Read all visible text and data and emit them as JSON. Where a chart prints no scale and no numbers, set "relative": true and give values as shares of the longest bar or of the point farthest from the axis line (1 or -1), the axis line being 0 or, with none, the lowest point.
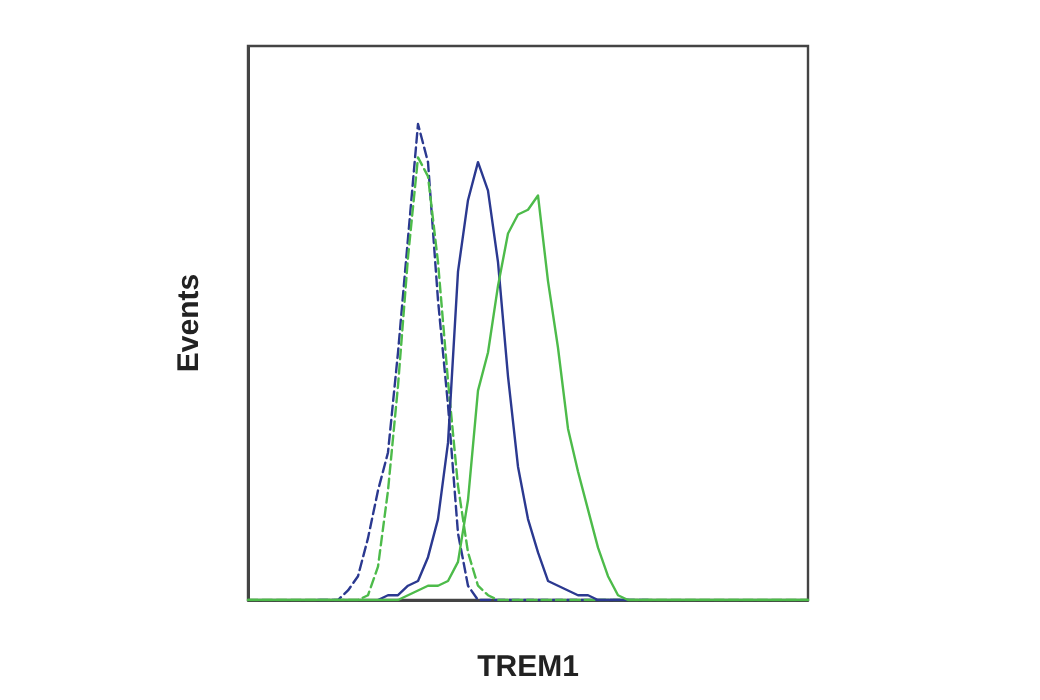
{
  "chart_data": {
    "type": "line",
    "relative": true,
    "xlabel": "TREM1",
    "ylabel": "Events",
    "grid": false,
    "marker": "none",
    "categories": [
      null,
      null,
      null,
      null,
      null,
      null,
      null,
      null,
      null,
      null,
      null,
      null,
      null,
      null,
      null,
      null,
      null,
      null,
      null,
      null,
      null,
      null,
      null,
      null,
      null,
      null,
      null,
      null,
      null,
      null,
      null,
      null,
      null,
      null,
      null,
      null,
      null,
      null,
      null,
      null,
      null,
      null,
      null,
      null,
      null,
      null,
      null,
      null,
      null,
      null,
      null,
      null,
      null,
      null,
      null,
      null,
      null
    ],
    "series": [
      {
        "color": "#2b3990",
        "line_style": "dashed",
        "values": [
          null,
          null,
          null,
          null,
          null,
          null,
          null,
          0,
          0,
          0,
          0.02,
          0.05,
          0.13,
          0.23,
          0.31,
          0.52,
          0.76,
          1,
          0.92,
          0.63,
          0.41,
          0.14,
          0.03,
          0,
          0,
          0,
          0,
          0,
          0,
          0,
          0,
          0,
          0,
          0,
          0,
          0,
          0,
          0,
          0,
          0,
          0,
          null,
          null,
          null,
          null,
          null,
          null,
          null,
          null,
          null,
          null,
          null,
          null,
          null,
          null,
          null,
          null
        ]
      },
      {
        "color": "#4dbb4a",
        "line_style": "dashed",
        "values": [
          0,
          0,
          0,
          0,
          0,
          0,
          0,
          0,
          0,
          0,
          0,
          0,
          0.01,
          0.07,
          0.23,
          0.45,
          0.72,
          0.93,
          0.89,
          0.71,
          0.46,
          0.24,
          0.1,
          0.03,
          0.01,
          0,
          0,
          0,
          0,
          0,
          0,
          0,
          0,
          0,
          0,
          0,
          0,
          0,
          0,
          0,
          0,
          0,
          0,
          0,
          0,
          0,
          0,
          0,
          0,
          0,
          0,
          0,
          0,
          0,
          0,
          0,
          0
        ]
      },
      {
        "color": "#2b3990",
        "line_style": "solid",
        "values": [
          null,
          null,
          null,
          null,
          null,
          null,
          null,
          null,
          null,
          null,
          null,
          null,
          null,
          0,
          0.01,
          0.01,
          0.03,
          0.04,
          0.09,
          0.17,
          0.33,
          0.69,
          0.84,
          0.92,
          0.86,
          0.71,
          0.47,
          0.28,
          0.17,
          0.1,
          0.04,
          0.03,
          0.02,
          0.01,
          0.01,
          0,
          0,
          0,
          0,
          null,
          null,
          null,
          null,
          null,
          null,
          null,
          null,
          null,
          null,
          null,
          null,
          null,
          null,
          null,
          null,
          null,
          null
        ]
      },
      {
        "color": "#4dbb4a",
        "line_style": "solid",
        "values": [
          0,
          0,
          0,
          0,
          0,
          0,
          0,
          0,
          0,
          0,
          0,
          0,
          0,
          0,
          0,
          0,
          0.01,
          0.02,
          0.03,
          0.03,
          0.04,
          0.08,
          0.21,
          0.44,
          0.52,
          0.66,
          0.77,
          0.81,
          0.82,
          0.85,
          0.67,
          0.53,
          0.36,
          0.27,
          0.19,
          0.11,
          0.05,
          0.01,
          0,
          0,
          0,
          0,
          0,
          0,
          0,
          0,
          0,
          0,
          0,
          0,
          0,
          0,
          0,
          0,
          0,
          0,
          0
        ]
      }
    ]
  }
}
